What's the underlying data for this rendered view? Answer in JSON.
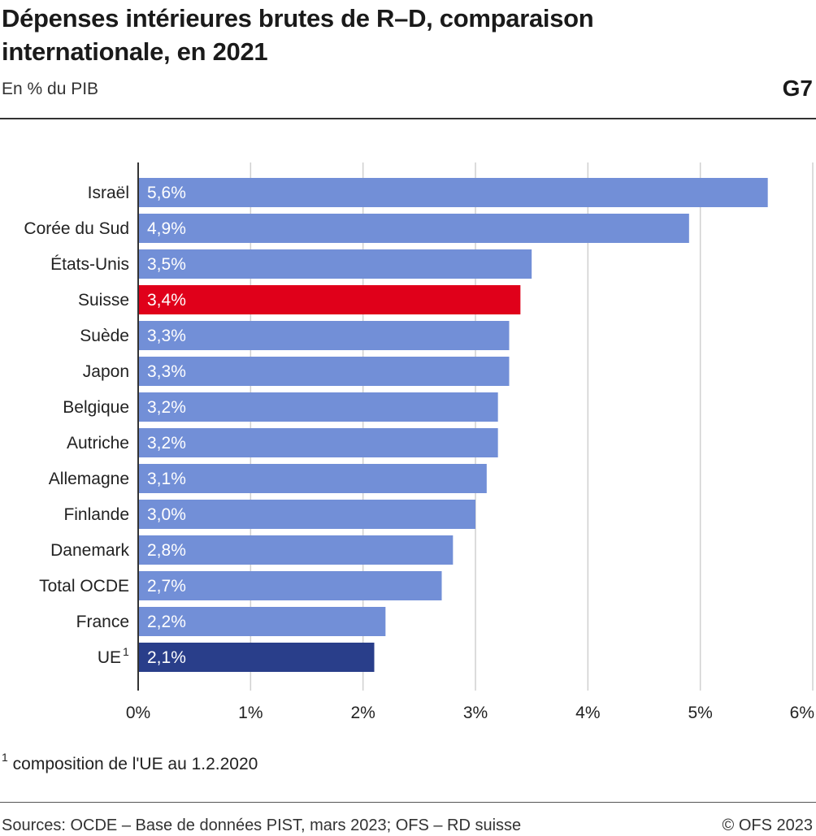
{
  "header": {
    "title": "Dépenses intérieures brutes de R–D, comparaison internationale, en 2021",
    "subtitle": "En % du PIB",
    "figure_id": "G7"
  },
  "footnote": {
    "marker": "1",
    "text": "composition de l'UE au 1.2.2020"
  },
  "footer": {
    "sources": "Sources: OCDE – Base de données PIST, mars 2023; OFS – RD suisse",
    "copyright": "© OFS 2023"
  },
  "colors": {
    "default_bar": "#728fd7",
    "highlight_bar": "#e0001a",
    "eu_bar": "#293e8a",
    "gridline": "#d0d0d0",
    "axis": "#333333"
  },
  "chart_data": {
    "type": "bar",
    "orientation": "horizontal",
    "categories": [
      "Israël",
      "Corée du Sud",
      "États-Unis",
      "Suisse",
      "Suède",
      "Japon",
      "Belgique",
      "Autriche",
      "Allemagne",
      "Finlande",
      "Danemark",
      "Total OCDE",
      "France",
      "UE"
    ],
    "category_superscripts": [
      "",
      "",
      "",
      "",
      "",
      "",
      "",
      "",
      "",
      "",
      "",
      "",
      "",
      "1"
    ],
    "values": [
      5.6,
      4.9,
      3.5,
      3.4,
      3.3,
      3.3,
      3.2,
      3.2,
      3.1,
      3.0,
      2.8,
      2.7,
      2.2,
      2.1
    ],
    "value_labels": [
      "5,6%",
      "4,9%",
      "3,5%",
      "3,4%",
      "3,3%",
      "3,3%",
      "3,2%",
      "3,2%",
      "3,1%",
      "3,0%",
      "2,8%",
      "2,7%",
      "2,2%",
      "2,1%"
    ],
    "bar_colors": [
      "default_bar",
      "default_bar",
      "default_bar",
      "highlight_bar",
      "default_bar",
      "default_bar",
      "default_bar",
      "default_bar",
      "default_bar",
      "default_bar",
      "default_bar",
      "default_bar",
      "default_bar",
      "eu_bar"
    ],
    "x_ticks": [
      0,
      1,
      2,
      3,
      4,
      5,
      6
    ],
    "x_tick_labels": [
      "0%",
      "1%",
      "2%",
      "3%",
      "4%",
      "5%",
      "6%"
    ],
    "xlim": [
      0,
      6
    ],
    "grid": true,
    "legend": "none"
  }
}
